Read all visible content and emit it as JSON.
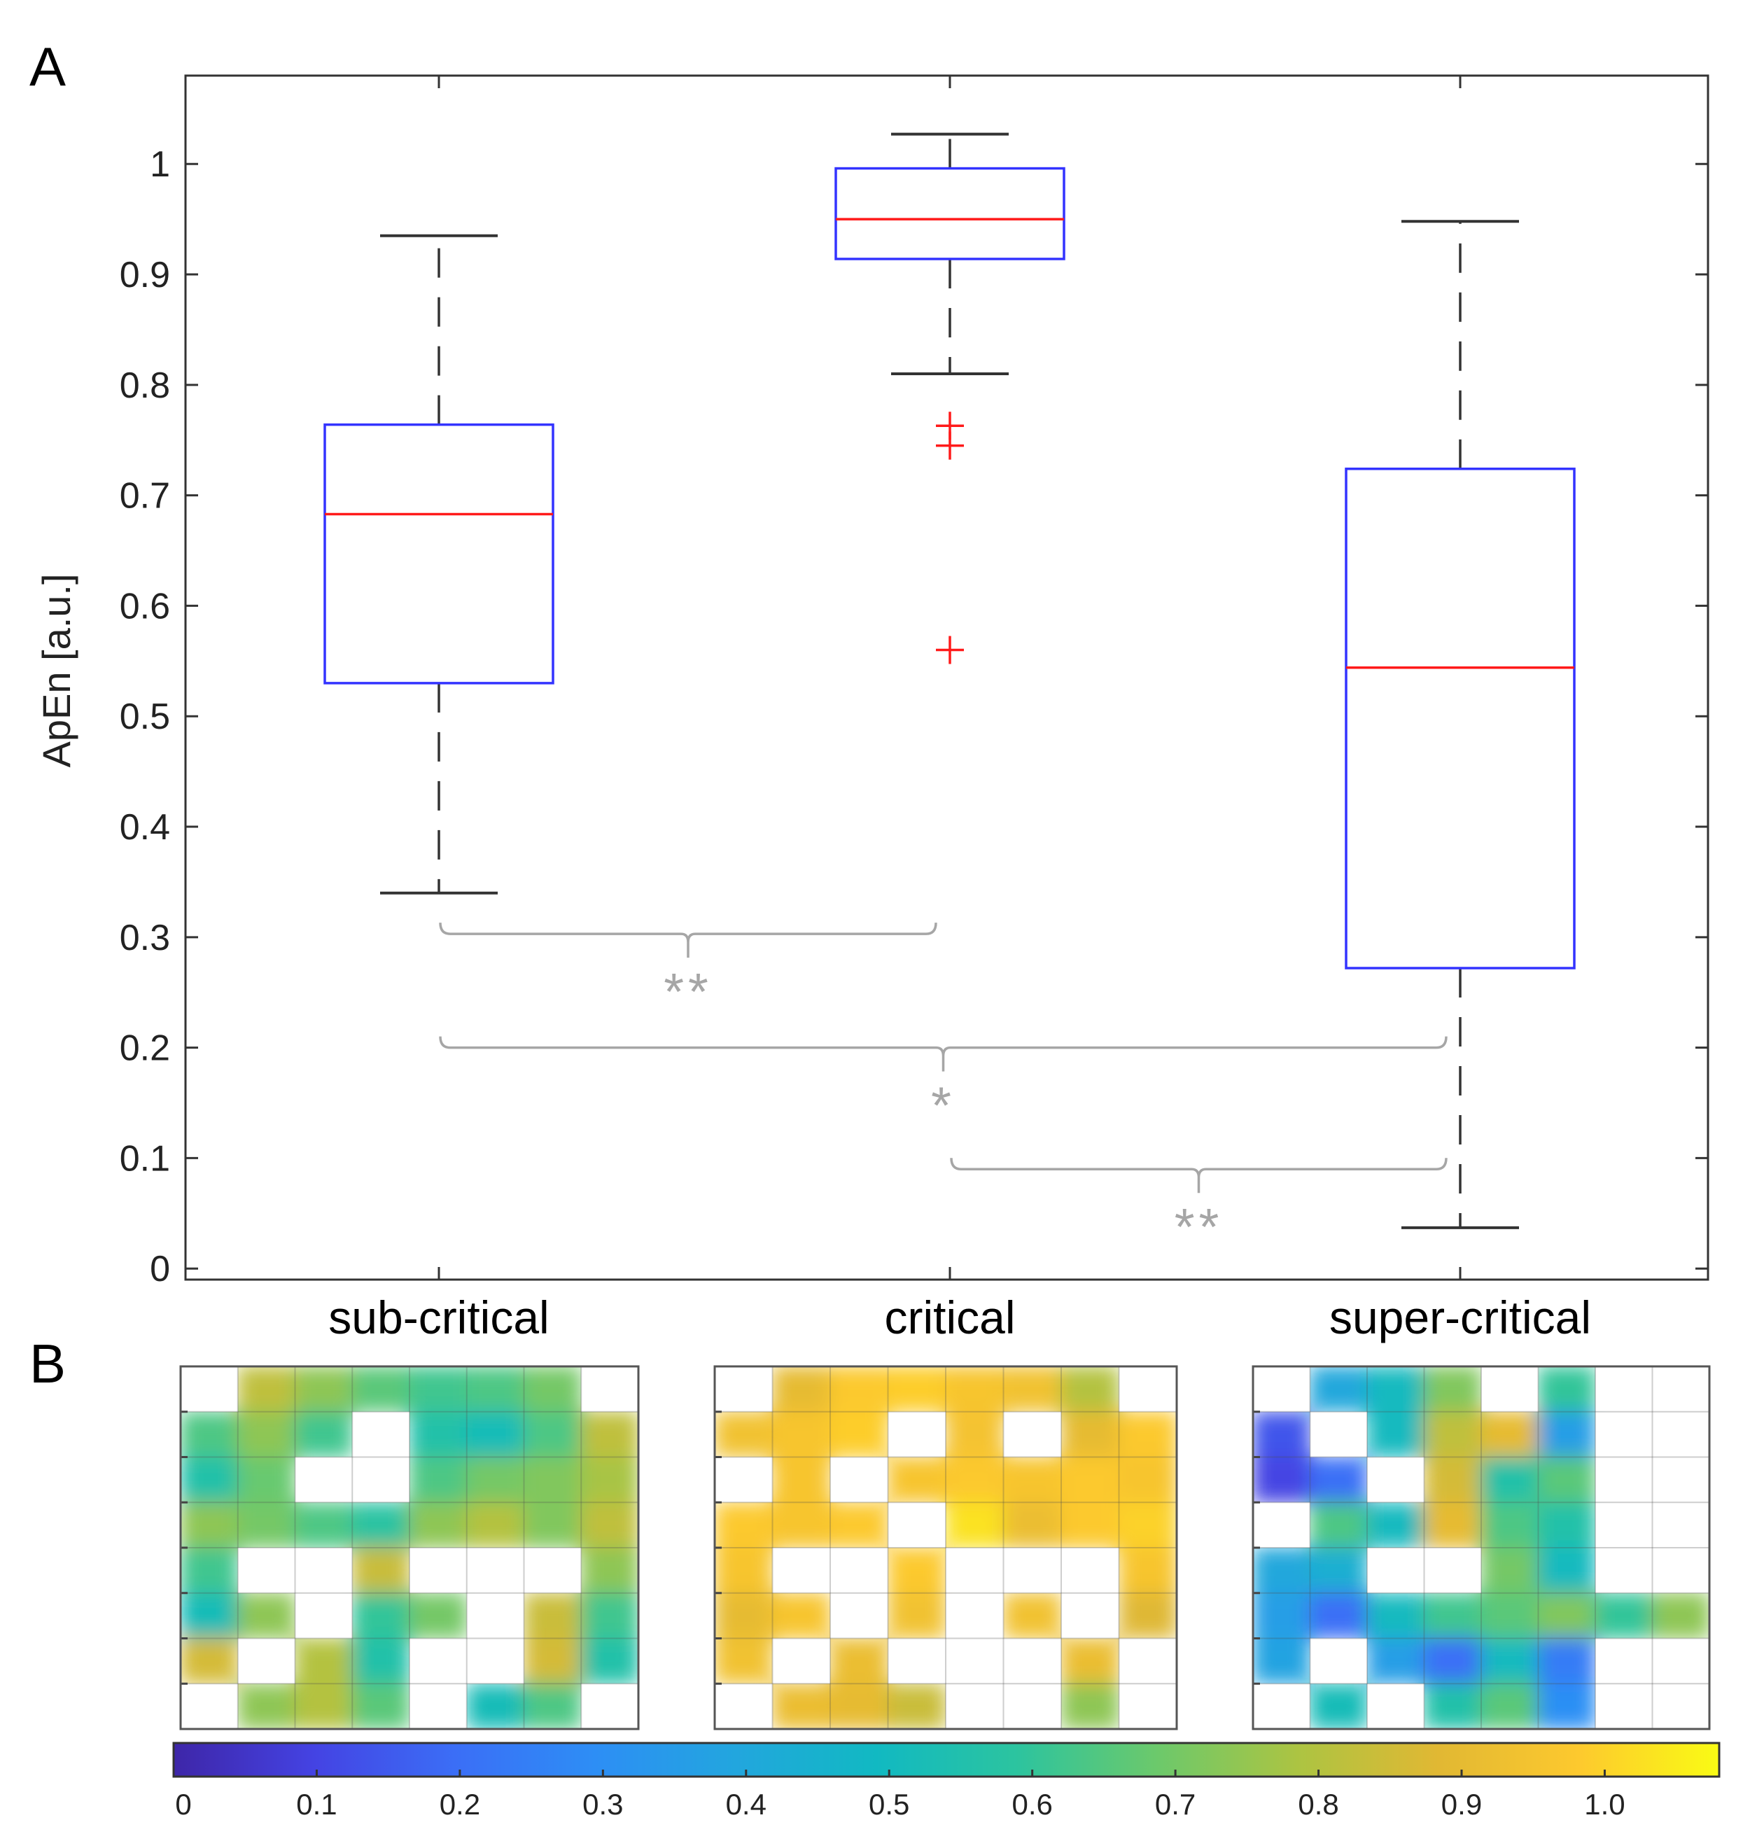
{
  "figure": {
    "panel_a_label": "A",
    "panel_b_label": "B"
  },
  "chart_data": [
    {
      "type": "box",
      "panel": "A",
      "ylabel": "ApEn [a.u.]",
      "xlabel": "",
      "ylim": [
        -0.01,
        1.08
      ],
      "yticks": [
        "0",
        "0.1",
        "0.2",
        "0.3",
        "0.4",
        "0.5",
        "0.6",
        "0.7",
        "0.8",
        "0.9",
        "1"
      ],
      "ytick_values": [
        0,
        0.1,
        0.2,
        0.3,
        0.4,
        0.5,
        0.6,
        0.7,
        0.8,
        0.9,
        1.0
      ],
      "categories": [
        "sub-critical",
        "critical",
        "super-critical"
      ],
      "grid": false,
      "colors": {
        "box": "#3333ff",
        "median": "#ff1a1a",
        "whisker": "#333333",
        "outlier": "#ff1a1a",
        "significance": "#a6a6a6"
      },
      "boxes": [
        {
          "category": "sub-critical",
          "whisker_low": 0.34,
          "q1": 0.53,
          "median": 0.683,
          "q3": 0.764,
          "whisker_high": 0.935,
          "outliers": []
        },
        {
          "category": "critical",
          "whisker_low": 0.81,
          "q1": 0.914,
          "median": 0.95,
          "q3": 0.996,
          "whisker_high": 1.027,
          "outliers": [
            0.763,
            0.745,
            0.56
          ]
        },
        {
          "category": "super-critical",
          "whisker_low": 0.037,
          "q1": 0.272,
          "median": 0.544,
          "q3": 0.724,
          "whisker_high": 0.948,
          "outliers": []
        }
      ],
      "significance": [
        {
          "between": [
            "sub-critical",
            "critical"
          ],
          "y": 0.303,
          "label": "**"
        },
        {
          "between": [
            "sub-critical",
            "super-critical"
          ],
          "y": 0.2,
          "label": "*"
        },
        {
          "between": [
            "critical",
            "super-critical"
          ],
          "y": 0.09,
          "label": "**"
        }
      ]
    },
    {
      "type": "heatmap",
      "panel": "B",
      "rows": 8,
      "cols": 8,
      "colormap": "parula",
      "clim": [
        0,
        1.08
      ],
      "colorbar_ticks": [
        "0",
        "0.1",
        "0.2",
        "0.3",
        "0.4",
        "0.5",
        "0.6",
        "0.7",
        "0.8",
        "0.9",
        "1.0"
      ],
      "colorbar_tick_values": [
        0,
        0.1,
        0.2,
        0.3,
        0.4,
        0.5,
        0.6,
        0.7,
        0.8,
        0.9,
        1.0
      ],
      "colorbar_colors": [
        "#3e26a8",
        "#4443e3",
        "#3b6ef6",
        "#2d8ef5",
        "#22a6de",
        "#11b9c2",
        "#2cc49f",
        "#6cc96b",
        "#acc442",
        "#e1b833",
        "#fdc92e",
        "#f9fb14"
      ],
      "blank_value": null,
      "maps": [
        {
          "category": "sub-critical",
          "values": [
            [
              null,
              0.82,
              0.74,
              0.66,
              0.62,
              0.64,
              0.7,
              null
            ],
            [
              0.64,
              0.74,
              0.62,
              null,
              0.56,
              0.52,
              0.64,
              0.82
            ],
            [
              0.56,
              0.68,
              null,
              null,
              0.64,
              0.7,
              0.72,
              0.78
            ],
            [
              0.74,
              0.7,
              0.64,
              0.58,
              0.74,
              0.8,
              0.72,
              0.82
            ],
            [
              0.62,
              null,
              null,
              0.84,
              null,
              null,
              null,
              0.74
            ],
            [
              0.52,
              0.74,
              null,
              0.6,
              0.7,
              null,
              0.84,
              0.62
            ],
            [
              0.86,
              null,
              0.8,
              0.56,
              null,
              null,
              0.86,
              0.56
            ],
            [
              null,
              0.74,
              0.8,
              0.66,
              null,
              0.52,
              0.64,
              null
            ]
          ]
        },
        {
          "category": "critical",
          "values": [
            [
              null,
              0.9,
              0.98,
              0.99,
              0.96,
              0.94,
              0.8,
              null
            ],
            [
              0.94,
              0.96,
              0.99,
              null,
              0.95,
              null,
              0.9,
              0.98
            ],
            [
              null,
              0.96,
              null,
              0.96,
              0.98,
              0.96,
              0.98,
              0.96
            ],
            [
              0.98,
              0.96,
              0.98,
              null,
              1.03,
              0.92,
              0.98,
              1.0
            ],
            [
              0.96,
              null,
              null,
              0.98,
              null,
              null,
              null,
              0.96
            ],
            [
              0.9,
              0.96,
              null,
              0.94,
              null,
              0.94,
              null,
              0.88
            ],
            [
              0.94,
              null,
              0.92,
              null,
              null,
              null,
              0.92,
              null
            ],
            [
              null,
              0.92,
              0.9,
              0.84,
              null,
              null,
              0.74,
              null
            ]
          ]
        },
        {
          "category": "super-critical",
          "values": [
            [
              null,
              0.4,
              0.5,
              0.72,
              null,
              0.6,
              null,
              null
            ],
            [
              0.14,
              null,
              0.5,
              0.82,
              0.9,
              0.36,
              null,
              null
            ],
            [
              0.1,
              0.2,
              null,
              0.86,
              0.56,
              0.66,
              null,
              null
            ],
            [
              null,
              0.64,
              0.5,
              0.9,
              0.64,
              0.56,
              null,
              null
            ],
            [
              0.4,
              0.44,
              null,
              null,
              0.7,
              0.5,
              null,
              null
            ],
            [
              0.36,
              0.2,
              0.5,
              0.62,
              0.66,
              0.72,
              0.6,
              0.74
            ],
            [
              0.38,
              null,
              0.36,
              0.2,
              0.5,
              0.24,
              null,
              null
            ],
            [
              null,
              0.52,
              null,
              0.56,
              0.66,
              0.3,
              null,
              null
            ]
          ]
        }
      ]
    }
  ]
}
